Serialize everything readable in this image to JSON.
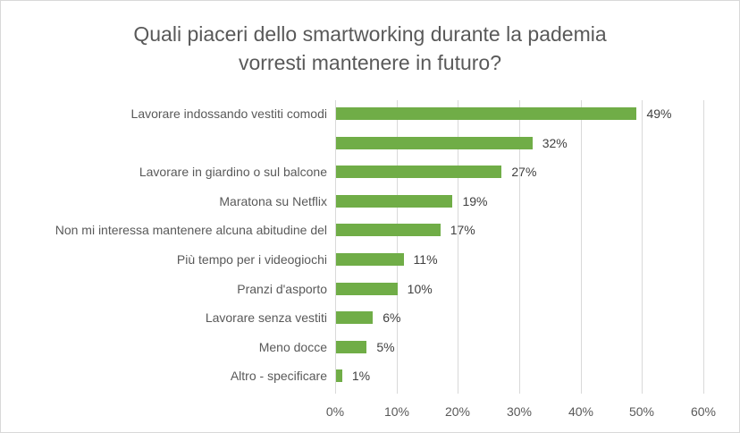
{
  "chart_data": {
    "type": "bar",
    "orientation": "horizontal",
    "title": "Quali piaceri dello smartworking durante la  pademia vorresti mantenere in futuro?",
    "title_lines": [
      "Quali piaceri dello smartworking durante la  pademia",
      "vorresti mantenere in futuro?"
    ],
    "categories": [
      "Lavorare indossando vestiti comodi",
      "",
      "Lavorare in giardino o sul balcone",
      "Maratona su Netflix",
      "Non mi interessa mantenere alcuna abitudine del",
      "Più tempo per i videogiochi",
      "Pranzi d'asporto",
      "Lavorare senza vestiti",
      "Meno docce",
      "Altro - specificare"
    ],
    "values": [
      49,
      32,
      27,
      19,
      17,
      11,
      10,
      6,
      5,
      1
    ],
    "value_labels": [
      "49%",
      "32%",
      "27%",
      "19%",
      "17%",
      "11%",
      "10%",
      "6%",
      "5%",
      "1%"
    ],
    "xlabel": "",
    "ylabel": "",
    "xlim": [
      0,
      60
    ],
    "x_ticks": [
      "0%",
      "10%",
      "20%",
      "30%",
      "40%",
      "50%",
      "60%"
    ],
    "grid": true,
    "legend": null,
    "bar_color": "#70ad47"
  }
}
